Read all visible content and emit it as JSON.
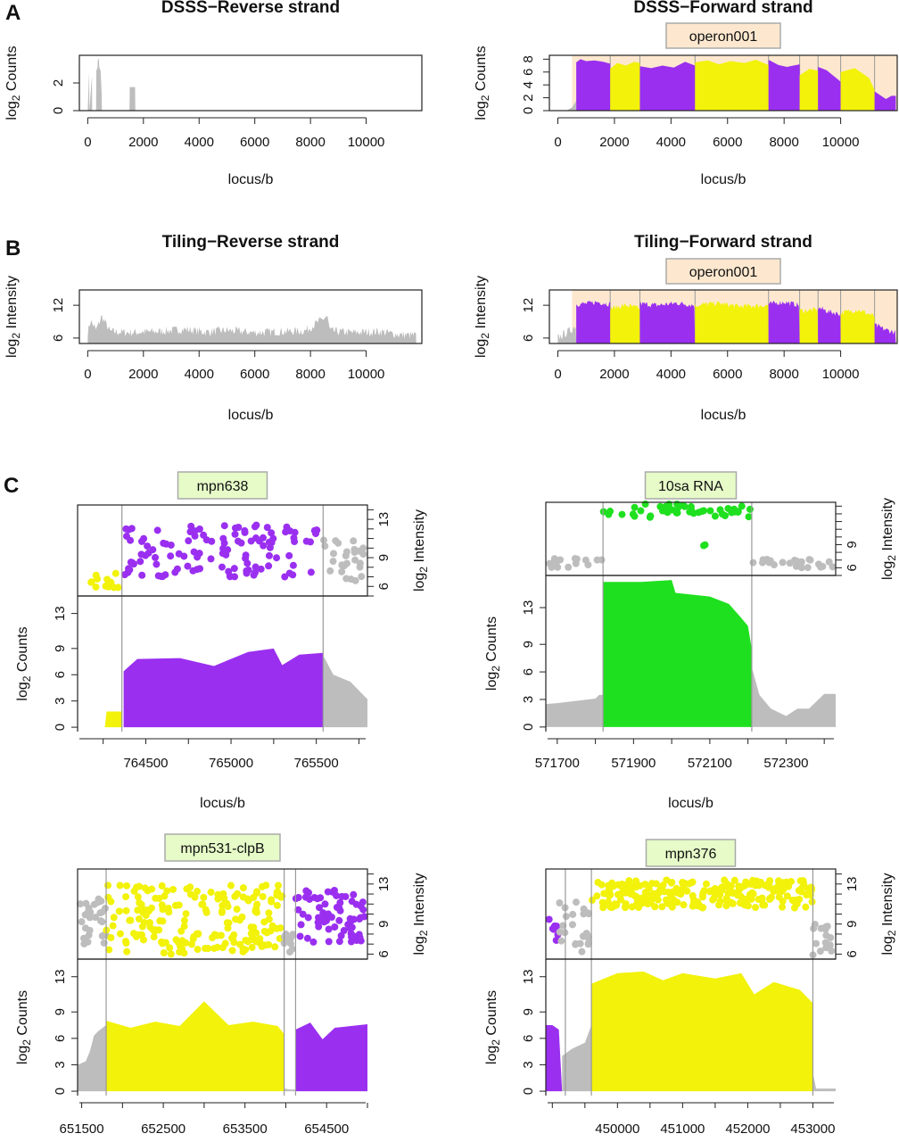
{
  "colors": {
    "purple": "#9a2ff0",
    "yellow": "#f2f20a",
    "green": "#1fe01f",
    "grey": "#bdbdbd",
    "operon_fill": "#fde8cf",
    "label_fill_orange": "#fde8cf",
    "label_fill_green": "#e6fbc8"
  },
  "panel_letters": [
    "A",
    "B",
    "C"
  ],
  "chart_data": [
    {
      "id": "dsss-rev",
      "type": "area",
      "title": "DSSS−Reverse strand",
      "xlabel": "locus/b",
      "ylabel": "log2 Counts",
      "xlim": [
        -300,
        12000
      ],
      "ylim": [
        0,
        4
      ],
      "xticks": [
        0,
        2000,
        4000,
        6000,
        8000,
        10000
      ],
      "yticks": [
        0,
        2
      ],
      "segments": [
        {
          "color": "grey",
          "x": [
            0,
            50,
            60,
            150,
            160,
            300,
            310,
            350,
            360,
            400,
            410,
            450,
            460,
            500,
            510,
            560,
            570,
            600,
            1500,
            1510,
            1700,
            1710,
            11800
          ],
          "y": [
            0,
            2.8,
            0,
            2.5,
            0,
            0,
            2.9,
            3.1,
            3.6,
            3.8,
            3.2,
            2.9,
            3.0,
            1.2,
            0,
            0,
            0,
            0,
            0,
            1.7,
            1.7,
            0,
            0
          ]
        }
      ]
    },
    {
      "id": "dsss-fwd",
      "type": "area",
      "title": "DSSS−Forward strand",
      "operon_label": "operon001",
      "xlabel": "locus/b",
      "ylabel": "log2 Counts",
      "xlim": [
        -300,
        12000
      ],
      "ylim": [
        0,
        8.6
      ],
      "xticks": [
        0,
        2000,
        4000,
        6000,
        8000,
        10000
      ],
      "yticks": [
        0,
        2,
        4,
        6,
        8
      ],
      "operon_range": [
        500,
        12000
      ],
      "boundaries": [
        1850,
        2900,
        4850,
        7450,
        8550,
        9200,
        10000,
        11200
      ],
      "segments": [
        {
          "color": "grey",
          "x": [
            0,
            300,
            500,
            650
          ],
          "y": [
            0,
            0,
            0.5,
            1.5
          ]
        },
        {
          "color": "purple",
          "x": [
            650,
            800,
            1000,
            1300,
            1600,
            1850
          ],
          "y": [
            7.5,
            8.0,
            7.7,
            7.8,
            7.6,
            7.3
          ]
        },
        {
          "color": "yellow",
          "x": [
            1850,
            2100,
            2400,
            2700,
            2900
          ],
          "y": [
            6.5,
            7.4,
            7.0,
            7.6,
            7.4
          ]
        },
        {
          "color": "purple",
          "x": [
            2900,
            3300,
            3700,
            4100,
            4500,
            4850
          ],
          "y": [
            6.9,
            6.6,
            7.0,
            6.7,
            7.6,
            7.0
          ]
        },
        {
          "color": "yellow",
          "x": [
            4850,
            5300,
            5700,
            6100,
            6600,
            7000,
            7450
          ],
          "y": [
            7.5,
            7.8,
            7.2,
            7.7,
            7.4,
            7.9,
            7.1
          ]
        },
        {
          "color": "purple",
          "x": [
            7450,
            7800,
            8100,
            8550
          ],
          "y": [
            7.9,
            7.1,
            6.8,
            7.2
          ]
        },
        {
          "color": "yellow",
          "x": [
            8550,
            8900,
            9200
          ],
          "y": [
            5.5,
            6.5,
            6.2
          ]
        },
        {
          "color": "purple",
          "x": [
            9200,
            9500,
            10000
          ],
          "y": [
            6.8,
            6.3,
            4.5
          ]
        },
        {
          "color": "yellow",
          "x": [
            10000,
            10500,
            11000,
            11200
          ],
          "y": [
            6.0,
            6.6,
            5.1,
            3.2
          ]
        },
        {
          "color": "purple",
          "x": [
            11200,
            11400,
            11600,
            11800,
            11950
          ],
          "y": [
            3.0,
            2.4,
            1.8,
            2.3,
            2.3
          ]
        }
      ]
    },
    {
      "id": "tiling-rev",
      "type": "area",
      "title": "Tiling−Reverse strand",
      "xlabel": "locus/b",
      "ylabel": "log2 Intensity",
      "xlim": [
        -300,
        12000
      ],
      "ylim": [
        5,
        14.8
      ],
      "xticks": [
        0,
        2000,
        4000,
        6000,
        8000,
        10000
      ],
      "yticks": [
        6,
        12
      ],
      "segments": [
        {
          "color": "grey",
          "x": [
            0,
            100,
            300,
            500,
            800,
            1500,
            2500,
            3500,
            4200,
            5000,
            6000,
            7000,
            7800,
            8600,
            8700,
            9500,
            10500,
            11200,
            11800
          ],
          "y": [
            7.0,
            9.2,
            7.4,
            10.0,
            7.2,
            7.0,
            7.2,
            7.6,
            7.1,
            7.4,
            7.0,
            7.2,
            7.3,
            10.0,
            7.3,
            7.0,
            7.2,
            6.6,
            6.5
          ]
        }
      ]
    },
    {
      "id": "tiling-fwd",
      "type": "area",
      "title": "Tiling−Forward strand",
      "operon_label": "operon001",
      "xlabel": "locus/b",
      "ylabel": "log2 Intensity",
      "xlim": [
        -300,
        12000
      ],
      "ylim": [
        5,
        14.8
      ],
      "xticks": [
        0,
        2000,
        4000,
        6000,
        8000,
        10000
      ],
      "yticks": [
        6,
        12
      ],
      "operon_range": [
        500,
        12000
      ],
      "boundaries": [
        1850,
        2900,
        4850,
        7450,
        8550,
        9200,
        10000,
        11200
      ],
      "segments": [
        {
          "color": "grey",
          "x": [
            0,
            300,
            500,
            650
          ],
          "y": [
            6.0,
            7.0,
            7.6,
            8.5
          ]
        },
        {
          "color": "purple",
          "x": [
            650,
            1000,
            1400,
            1850
          ],
          "y": [
            12.2,
            12.3,
            12.6,
            12.2
          ]
        },
        {
          "color": "yellow",
          "x": [
            1850,
            2400,
            2900
          ],
          "y": [
            11.4,
            12.0,
            11.4
          ]
        },
        {
          "color": "purple",
          "x": [
            2900,
            3500,
            4200,
            4850
          ],
          "y": [
            12.3,
            12.0,
            12.4,
            12.0
          ]
        },
        {
          "color": "yellow",
          "x": [
            4850,
            5600,
            6400,
            7450
          ],
          "y": [
            12.0,
            12.4,
            11.8,
            12.0
          ]
        },
        {
          "color": "purple",
          "x": [
            7450,
            8000,
            8550
          ],
          "y": [
            12.2,
            12.6,
            12.0
          ]
        },
        {
          "color": "yellow",
          "x": [
            8550,
            9200
          ],
          "y": [
            11.0,
            11.2
          ]
        },
        {
          "color": "purple",
          "x": [
            9200,
            9600,
            10000
          ],
          "y": [
            11.6,
            10.8,
            10.4
          ]
        },
        {
          "color": "yellow",
          "x": [
            10000,
            10600,
            11200
          ],
          "y": [
            10.6,
            11.2,
            10.0
          ]
        },
        {
          "color": "purple",
          "x": [
            11200,
            11600,
            11950
          ],
          "y": [
            8.4,
            7.5,
            7.0
          ]
        }
      ]
    },
    {
      "id": "mpn638",
      "type": "composite",
      "gene_label": "mpn638",
      "xlabel": "locus/b",
      "ylabel_top": "log2 Intensity",
      "ylabel_bottom": "log2 Counts",
      "xlim": [
        764100,
        765800
      ],
      "ylim_top": [
        5,
        14.5
      ],
      "ylim_bottom": [
        -0.5,
        15
      ],
      "xticks": [
        764500,
        765000,
        765500
      ],
      "yticks_top": [
        6,
        9,
        13
      ],
      "yticks_bottom": [
        0,
        3,
        6,
        9,
        13
      ],
      "boundaries": [
        764360,
        765540
      ],
      "points": [
        {
          "color": "yellow",
          "x_range": [
            764100,
            764360
          ],
          "n": 14,
          "y_range": [
            5.8,
            7.5
          ]
        },
        {
          "color": "purple",
          "x_range": [
            764360,
            765540
          ],
          "n": 120,
          "y_range": [
            7.0,
            12.5
          ]
        },
        {
          "color": "grey",
          "x_range": [
            765540,
            765800
          ],
          "n": 30,
          "y_range": [
            6.6,
            11.0
          ]
        }
      ],
      "segments": [
        {
          "color": "yellow",
          "x": [
            764100,
            764260,
            764270,
            764360
          ],
          "y": [
            0,
            0,
            1.8,
            1.8
          ]
        },
        {
          "color": "purple",
          "x": [
            764370,
            764450,
            764700,
            764900,
            765100,
            765250,
            765300,
            765400,
            765540
          ],
          "y": [
            6.4,
            7.8,
            7.9,
            7.0,
            8.6,
            9.0,
            7.1,
            8.3,
            8.5
          ]
        },
        {
          "color": "grey",
          "x": [
            765540,
            765600,
            765700,
            765800
          ],
          "y": [
            8.2,
            6.0,
            5.2,
            3.2
          ]
        }
      ]
    },
    {
      "id": "10sa",
      "type": "composite",
      "gene_label": "10sa RNA",
      "xlabel": "locus/b",
      "ylabel_top": "log2 Intensity",
      "ylabel_bottom": "log2 Counts",
      "xlim": [
        571670,
        572430
      ],
      "ylim_top": [
        5,
        14.5
      ],
      "ylim_bottom": [
        -0.5,
        16.5
      ],
      "xticks": [
        571700,
        571900,
        572100,
        572300
      ],
      "yticks_top": [
        6,
        9
      ],
      "yticks_bottom": [
        0,
        3,
        6,
        9,
        13
      ],
      "boundaries": [
        571820,
        572210
      ],
      "points": [
        {
          "color": "grey",
          "x_range": [
            571670,
            571820
          ],
          "n": 16,
          "y_range": [
            6.0,
            7.2
          ]
        },
        {
          "color": "green",
          "x_range": [
            571820,
            572210
          ],
          "n": 46,
          "y_range": [
            12.5,
            14.3
          ]
        },
        {
          "color": "green",
          "x_range": [
            572080,
            572100
          ],
          "n": 2,
          "y_range": [
            8.7,
            9.0
          ]
        },
        {
          "color": "grey",
          "x_range": [
            572210,
            572430
          ],
          "n": 22,
          "y_range": [
            6.0,
            7.2
          ]
        }
      ],
      "segments": [
        {
          "color": "grey",
          "x": [
            571670,
            571700,
            571800,
            571810,
            571820
          ],
          "y": [
            2.5,
            2.6,
            3.1,
            3.5,
            3.5
          ]
        },
        {
          "color": "green",
          "x": [
            571820,
            571920,
            572000,
            572010,
            572100,
            572150,
            572180,
            572200,
            572210
          ],
          "y": [
            15.8,
            15.8,
            16.0,
            14.6,
            14.2,
            13.4,
            12.0,
            11.0,
            8.5
          ]
        },
        {
          "color": "grey",
          "x": [
            572210,
            572230,
            572260,
            572300,
            572330,
            572360,
            572400,
            572430
          ],
          "y": [
            6.5,
            3.5,
            2.0,
            1.2,
            2.0,
            2.0,
            3.6,
            3.6
          ]
        }
      ]
    },
    {
      "id": "mpn531",
      "type": "composite",
      "gene_label": "mpn531-clpB",
      "xlabel": "locus/b",
      "ylabel_top": "log2 Intensity",
      "ylabel_bottom": "log2 Counts",
      "xlim": [
        651450,
        655000
      ],
      "ylim_top": [
        5.5,
        14.5
      ],
      "ylim_bottom": [
        -0.5,
        15
      ],
      "xticks": [
        651500,
        652500,
        653500,
        654500
      ],
      "yticks_top": [
        6,
        9,
        13
      ],
      "yticks_bottom": [
        0,
        3,
        6,
        9,
        13
      ],
      "boundaries": [
        651800,
        653980,
        654120
      ],
      "points": [
        {
          "color": "grey",
          "x_range": [
            651450,
            651800
          ],
          "n": 30,
          "y_range": [
            7.0,
            11.5
          ]
        },
        {
          "color": "yellow",
          "x_range": [
            651800,
            653980
          ],
          "n": 190,
          "y_range": [
            6.0,
            13.0
          ]
        },
        {
          "color": "grey",
          "x_range": [
            653980,
            654120
          ],
          "n": 10,
          "y_range": [
            6.0,
            8.0
          ]
        },
        {
          "color": "purple",
          "x_range": [
            654120,
            655000
          ],
          "n": 70,
          "y_range": [
            7.2,
            12.5
          ]
        }
      ],
      "segments": [
        {
          "color": "grey",
          "x": [
            651450,
            651550,
            651600,
            651650,
            651700,
            651800
          ],
          "y": [
            3.0,
            3.4,
            4.5,
            6.3,
            6.8,
            7.5
          ]
        },
        {
          "color": "yellow",
          "x": [
            651800,
            652100,
            652400,
            652700,
            653000,
            653300,
            653600,
            653900,
            653980
          ],
          "y": [
            8.0,
            7.2,
            7.9,
            7.4,
            10.2,
            7.5,
            7.9,
            7.4,
            6.5
          ]
        },
        {
          "color": "grey",
          "x": [
            653980,
            654050,
            654120
          ],
          "y": [
            0.3,
            0.2,
            0.2
          ]
        },
        {
          "color": "purple",
          "x": [
            654120,
            654300,
            654450,
            654600,
            654800,
            655000
          ],
          "y": [
            7.0,
            7.8,
            5.9,
            7.2,
            7.4,
            7.6
          ]
        }
      ]
    },
    {
      "id": "mpn376",
      "type": "composite",
      "gene_label": "mpn376",
      "xlabel": "locus/b",
      "ylabel_top": "log2 Intensity",
      "ylabel_bottom": "log2 Counts",
      "xlim": [
        448900,
        453350
      ],
      "ylim_top": [
        5.5,
        14.5
      ],
      "ylim_bottom": [
        -0.5,
        15
      ],
      "xticks": [
        450000,
        451000,
        452000,
        453000
      ],
      "yticks_top": [
        6,
        9,
        13
      ],
      "yticks_bottom": [
        0,
        3,
        6,
        9,
        13
      ],
      "boundaries": [
        449200,
        449600,
        453000
      ],
      "points": [
        {
          "color": "purple",
          "x_range": [
            448900,
            449100
          ],
          "n": 10,
          "y_range": [
            6.5,
            9.5
          ]
        },
        {
          "color": "grey",
          "x_range": [
            449100,
            449600
          ],
          "n": 25,
          "y_range": [
            6.2,
            11.5
          ]
        },
        {
          "color": "yellow",
          "x_range": [
            449600,
            453000
          ],
          "n": 240,
          "y_range": [
            10.6,
            13.4
          ]
        },
        {
          "color": "grey",
          "x_range": [
            453000,
            453350
          ],
          "n": 18,
          "y_range": [
            5.8,
            9.0
          ]
        }
      ],
      "segments": [
        {
          "color": "purple",
          "x": [
            448900,
            449000,
            449100,
            449150
          ],
          "y": [
            7.5,
            7.5,
            7.0,
            0
          ]
        },
        {
          "color": "grey",
          "x": [
            449150,
            449300,
            449500,
            449600
          ],
          "y": [
            4.0,
            4.8,
            5.5,
            7.5
          ]
        },
        {
          "color": "yellow",
          "x": [
            449600,
            450000,
            450400,
            450700,
            451000,
            451500,
            451900,
            452100,
            452400,
            452800,
            453000
          ],
          "y": [
            12.2,
            13.4,
            13.6,
            12.6,
            13.4,
            12.8,
            13.4,
            11.0,
            12.4,
            11.5,
            10.0
          ]
        },
        {
          "color": "grey",
          "x": [
            453000,
            453050,
            453350
          ],
          "y": [
            2.0,
            0.3,
            0.3
          ]
        }
      ]
    }
  ]
}
